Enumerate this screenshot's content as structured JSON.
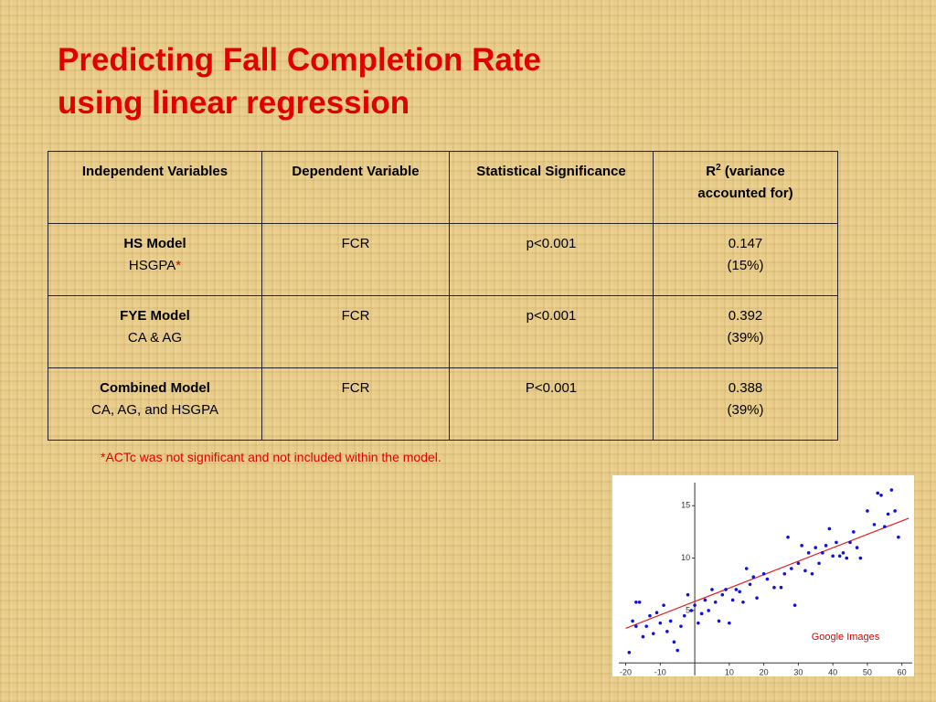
{
  "title": [
    "Predicting Fall Completion Rate",
    "using linear regression"
  ],
  "table": {
    "header": {
      "independent": "Independent Variables",
      "dependent": "Dependent Variable",
      "significance": "Statistical Significance",
      "r2": [
        "R",
        "2",
        " (variance",
        "accounted for)"
      ]
    },
    "rows": [
      {
        "model": "HS Model",
        "detail": "HSGPA",
        "mark": "*",
        "dependent": "FCR",
        "significance": "p<0.001",
        "r2": "0.147",
        "pct": "(15%)"
      },
      {
        "model": "FYE Model",
        "detail": "CA & AG",
        "dependent": "FCR",
        "significance": "p<0.001",
        "r2": "0.392",
        "pct": "(39%)"
      },
      {
        "model": "Combined Model",
        "detail": "CA, AG, and HSGPA",
        "dependent": "FCR",
        "significance": "P<0.001",
        "r2": "0.388",
        "pct": "(39%)"
      }
    ]
  },
  "footnote": "*ACTc was not significant and not included within the model.",
  "figure": {
    "type": "scatter",
    "credit": "Google Images",
    "x": [
      -19,
      -18,
      -17,
      -17,
      -16,
      -15,
      -14,
      -13,
      -12,
      -11,
      -10,
      -9,
      -8,
      -7,
      -6,
      -5,
      -4,
      -3,
      -2,
      -1,
      0,
      1,
      2,
      3,
      4,
      5,
      6,
      7,
      8,
      9,
      10,
      11,
      12,
      13,
      14,
      15,
      16,
      17,
      18,
      20,
      21,
      23,
      25,
      26,
      27,
      28,
      29,
      30,
      31,
      32,
      33,
      34,
      35,
      36,
      37,
      38,
      39,
      40,
      41,
      42,
      43,
      44,
      45,
      46,
      47,
      48,
      50,
      52,
      53,
      54,
      55,
      56,
      57,
      58,
      59
    ],
    "y": [
      1,
      4,
      3.5,
      5.8,
      5.8,
      2.5,
      3.5,
      4.5,
      2.8,
      4.8,
      3.8,
      5.5,
      3,
      4,
      2,
      1.2,
      3.5,
      4.5,
      6.5,
      5,
      5.5,
      3.8,
      4.7,
      6,
      5,
      7,
      5.8,
      4,
      6.5,
      7,
      3.8,
      6,
      7,
      6.8,
      5.8,
      9,
      7.5,
      8.2,
      6.2,
      8.5,
      8,
      7.2,
      7.2,
      8.5,
      12,
      9,
      5.5,
      9.5,
      11.2,
      8.8,
      10.5,
      8.5,
      11,
      9.5,
      10.5,
      11.2,
      12.8,
      10.2,
      11.5,
      10.2,
      10.5,
      10,
      11.5,
      12.5,
      11,
      10,
      14.5,
      13.2,
      16.2,
      16,
      13,
      14.2,
      16.5,
      14.5,
      12
    ],
    "color": "#1010e0",
    "trend": {
      "x": [
        -20,
        62
      ],
      "y": [
        3.3,
        13.8
      ],
      "color": "#e02020"
    },
    "xlim": [
      -22,
      63
    ],
    "ylim": [
      -0.5,
      17.2
    ],
    "xticks": [
      -20,
      -10,
      10,
      20,
      30,
      40,
      50,
      60
    ],
    "yticks": [
      5,
      10,
      15
    ]
  }
}
